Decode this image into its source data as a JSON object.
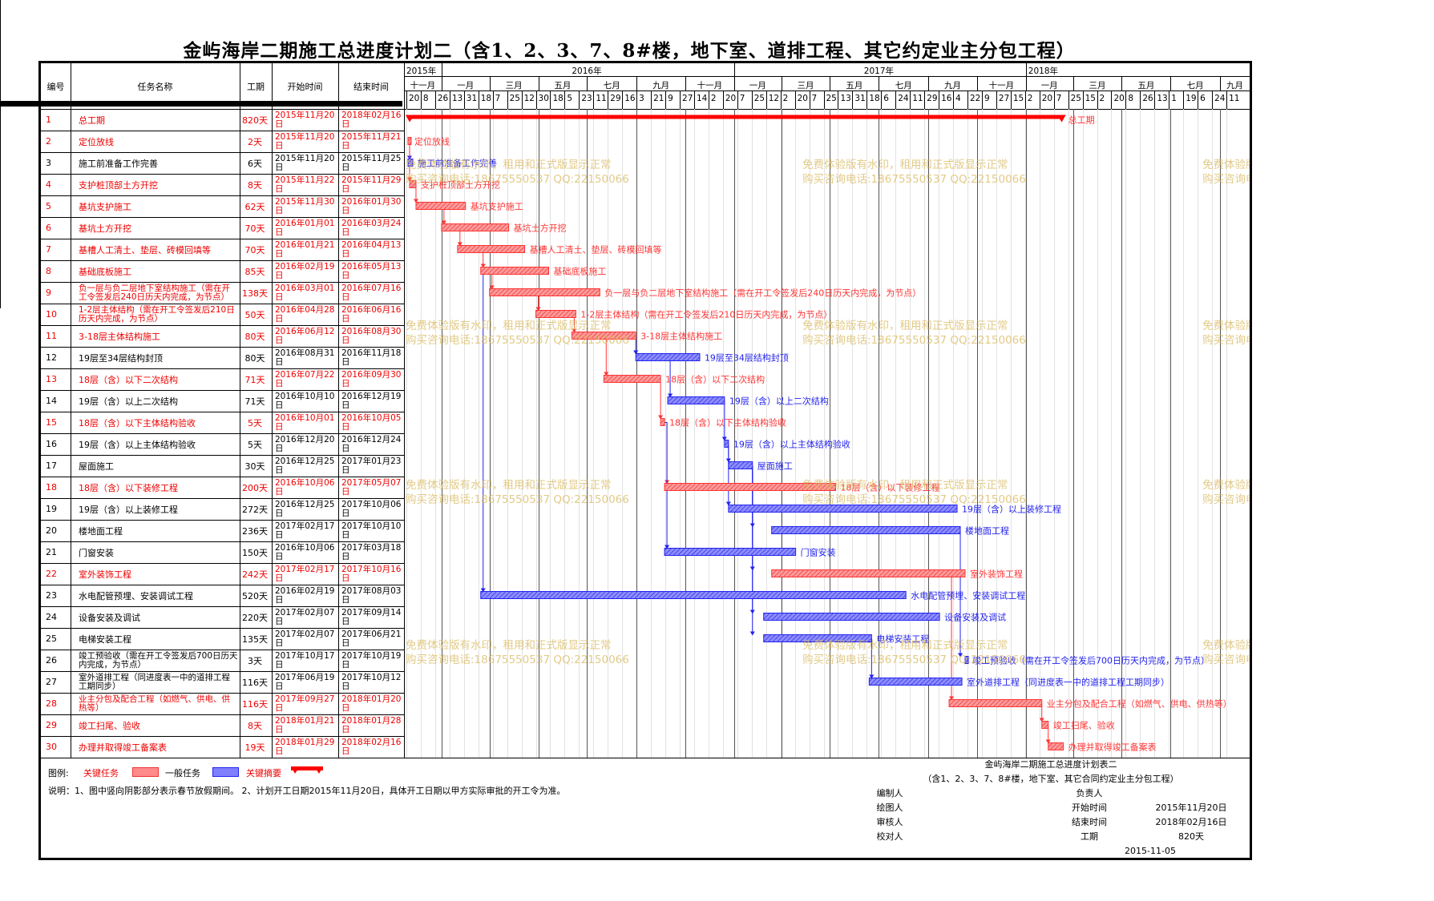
{
  "title": "金屿海岸二期施工总进度计划二（含1、2、3、7、8#楼，地下室、道排工程、其它约定业主分包工程）",
  "columns": {
    "id": "编号",
    "name": "任务名称",
    "dur": "工期",
    "start": "开始时间",
    "end": "结束时间"
  },
  "timeline": {
    "years": [
      "2015年",
      "2016年",
      "2017年",
      "2018年"
    ],
    "months": [
      "十一月",
      "一月",
      "三月",
      "五月",
      "七月",
      "九月",
      "十一月",
      "一月",
      "三月",
      "五月",
      "七月",
      "九月",
      "十一月",
      "一月",
      "三月",
      "五月",
      "七月",
      "九月"
    ],
    "days": [
      "20",
      "8",
      "26",
      "13",
      "31",
      "18",
      "7",
      "25",
      "12",
      "30",
      "18",
      "5",
      "23",
      "11",
      "29",
      "16",
      "3",
      "21",
      "9",
      "27",
      "14",
      "2",
      "20",
      "7",
      "25",
      "12",
      "2",
      "20",
      "7",
      "25",
      "13",
      "31",
      "18",
      "6",
      "24",
      "11",
      "29",
      "16",
      "4",
      "22",
      "9",
      "27",
      "15",
      "2",
      "20",
      "7",
      "25",
      "15",
      "2",
      "20",
      "8",
      "26",
      "13",
      "1",
      "19",
      "6",
      "24",
      "11"
    ]
  },
  "tasks": [
    {
      "id": "1",
      "name": "总工期",
      "dur": "820天",
      "start": "2015年11月20日",
      "end": "2018年02月16日",
      "critical": true
    },
    {
      "id": "2",
      "name": "定位放线",
      "dur": "2天",
      "start": "2015年11月20日",
      "end": "2015年11月21日",
      "critical": true
    },
    {
      "id": "3",
      "name": "施工前准备工作完善",
      "dur": "6天",
      "start": "2015年11月20日",
      "end": "2015年11月25日",
      "critical": false
    },
    {
      "id": "4",
      "name": "支护桩顶部土方开挖",
      "dur": "8天",
      "start": "2015年11月22日",
      "end": "2015年11月29日",
      "critical": true
    },
    {
      "id": "5",
      "name": "基坑支护施工",
      "dur": "62天",
      "start": "2015年11月30日",
      "end": "2016年01月30日",
      "critical": true
    },
    {
      "id": "6",
      "name": "基坑土方开挖",
      "dur": "70天",
      "start": "2016年01月01日",
      "end": "2016年03月24日",
      "critical": true
    },
    {
      "id": "7",
      "name": "基槽人工清土、垫层、砖模回填等",
      "dur": "70天",
      "start": "2016年01月21日",
      "end": "2016年04月13日",
      "critical": true
    },
    {
      "id": "8",
      "name": "基础底板施工",
      "dur": "85天",
      "start": "2016年02月19日",
      "end": "2016年05月13日",
      "critical": true
    },
    {
      "id": "9",
      "name": "负一层与负二层地下室结构施工（需在开工令签发后240日历天内完成，为节点）",
      "dur": "138天",
      "start": "2016年03月01日",
      "end": "2016年07月16日",
      "critical": true
    },
    {
      "id": "10",
      "name": "1-2层主体结构（需在开工令签发后210日历天内完成，为节点）",
      "dur": "50天",
      "start": "2016年04月28日",
      "end": "2016年06月16日",
      "critical": true
    },
    {
      "id": "11",
      "name": "3-18层主体结构施工",
      "dur": "80天",
      "start": "2016年06月12日",
      "end": "2016年08月30日",
      "critical": true
    },
    {
      "id": "12",
      "name": "19层至34层结构封顶",
      "dur": "80天",
      "start": "2016年08月31日",
      "end": "2016年11月18日",
      "critical": false
    },
    {
      "id": "13",
      "name": "18层（含）以下二次结构",
      "dur": "71天",
      "start": "2016年07月22日",
      "end": "2016年09月30日",
      "critical": true
    },
    {
      "id": "14",
      "name": "19层（含）以上二次结构",
      "dur": "71天",
      "start": "2016年10月10日",
      "end": "2016年12月19日",
      "critical": false
    },
    {
      "id": "15",
      "name": "18层（含）以下主体结构验收",
      "dur": "5天",
      "start": "2016年10月01日",
      "end": "2016年10月05日",
      "critical": true
    },
    {
      "id": "16",
      "name": "19层（含）以上主体结构验收",
      "dur": "5天",
      "start": "2016年12月20日",
      "end": "2016年12月24日",
      "critical": false
    },
    {
      "id": "17",
      "name": "屋面施工",
      "dur": "30天",
      "start": "2016年12月25日",
      "end": "2017年01月23日",
      "critical": false
    },
    {
      "id": "18",
      "name": "18层（含）以下装修工程",
      "dur": "200天",
      "start": "2016年10月06日",
      "end": "2017年05月07日",
      "critical": true
    },
    {
      "id": "19",
      "name": "19层（含）以上装修工程",
      "dur": "272天",
      "start": "2016年12月25日",
      "end": "2017年10月06日",
      "critical": false
    },
    {
      "id": "20",
      "name": "楼地面工程",
      "dur": "236天",
      "start": "2017年02月17日",
      "end": "2017年10月10日",
      "critical": false
    },
    {
      "id": "21",
      "name": "门窗安装",
      "dur": "150天",
      "start": "2016年10月06日",
      "end": "2017年03月18日",
      "critical": false
    },
    {
      "id": "22",
      "name": "室外装饰工程",
      "dur": "242天",
      "start": "2017年02月17日",
      "end": "2017年10月16日",
      "critical": true
    },
    {
      "id": "23",
      "name": "水电配管预埋、安装调试工程",
      "dur": "520天",
      "start": "2016年02月19日",
      "end": "2017年08月03日",
      "critical": false
    },
    {
      "id": "24",
      "name": "设备安装及调试",
      "dur": "220天",
      "start": "2017年02月07日",
      "end": "2017年09月14日",
      "critical": false
    },
    {
      "id": "25",
      "name": "电梯安装工程",
      "dur": "135天",
      "start": "2017年02月07日",
      "end": "2017年06月21日",
      "critical": false
    },
    {
      "id": "26",
      "name": "竣工预验收（需在开工令签发后700日历天内完成，为节点）",
      "dur": "3天",
      "start": "2017年10月17日",
      "end": "2017年10月19日",
      "critical": false
    },
    {
      "id": "27",
      "name": "室外道排工程（同进度表一中的道排工程工期同步）",
      "dur": "116天",
      "start": "2017年06月19日",
      "end": "2017年10月12日",
      "critical": false
    },
    {
      "id": "28",
      "name": "业主分包及配合工程（如燃气、供电、供热等）",
      "dur": "116天",
      "start": "2017年09月27日",
      "end": "2018年01月20日",
      "critical": true
    },
    {
      "id": "29",
      "name": "竣工扫尾、验收",
      "dur": "8天",
      "start": "2018年01月21日",
      "end": "2018年01月28日",
      "critical": true
    },
    {
      "id": "30",
      "name": "办理并取得竣工备案表",
      "dur": "19天",
      "start": "2018年01月29日",
      "end": "2018年02月16日",
      "critical": true
    }
  ],
  "bar_labels": {
    "1": "总工期",
    "2": "定位放线",
    "3": "施工前准备工作完善",
    "4": "支护桩顶部土方开挖",
    "5": "基坑支护施工",
    "6": "基坑土方开挖",
    "7": "基槽人工清土、垫层、砖模回填等",
    "8": "基础底板施工",
    "9": "负一层与负二层地下室结构施工（需在开工令签发后240日历天内完成，为节点）",
    "10": "1-2层主体结构（需在开工令签发后210日历天内完成，为节点）",
    "11": "3-18层主体结构施工",
    "12": "19层至34层结构封顶",
    "13": "18层（含）以下二次结构",
    "14": "19层（含）以上二次结构",
    "15": "18层（含）以下主体结构验收",
    "16": "19层（含）以上主体结构验收",
    "17": "屋面施工",
    "18": "18层（含）以下装修工程",
    "19": "19层（含）以上装修工程",
    "20": "楼地面工程",
    "21": "门窗安装",
    "22": "室外装饰工程",
    "23": "水电配管预埋、安装调试工程",
    "24": "设备安装及调试",
    "25": "电梯安装工程",
    "26": "竣工预验收（需在开工令签发后700日历天内完成，为节点）",
    "27": "室外道排工程（同进度表一中的道排工程工期同步）",
    "28": "业主分包及配合工程（如燃气、供电、供热等）",
    "29": "竣工扫尾、验收",
    "30": "办理并取得竣工备案表"
  },
  "watermark": {
    "line1": "免费体验版有水印，租用和正式版显示正常",
    "line2": "购买咨询电话:18675550537 QQ:22150066"
  },
  "legend": {
    "label": "图例:",
    "critical": "关键任务",
    "normal": "一般任务",
    "summary": "关键摘要"
  },
  "notes": "说明：1、图中竖向阴影部分表示春节放假期间。    2、计划开工日期2015年11月20日，具体开工日期以甲方实际审批的开工令为准。",
  "title_block": {
    "name": "金屿海岸二期施工总进度计划表二",
    "subtitle": "（含1、2、3、7、8#楼，地下室、其它合同约定业主分包工程）",
    "compiled_by": "编制人",
    "responsible": "负责人",
    "drawn_by": "绘图人",
    "start_label": "开始时间",
    "start_value": "2015年11月20日",
    "reviewed_by": "审核人",
    "end_label": "结束时间",
    "end_value": "2018年02月16日",
    "checked_by": "校对人",
    "duration_label": "工期",
    "duration_value": "820天",
    "date": "2015-11-05"
  },
  "colors": {
    "critical": "#ff3333",
    "critical_fill": "#ff8a8a",
    "normal": "#2222ee",
    "normal_fill": "#8080ff",
    "summary": "#ff0000",
    "watermark": "#d9b95e"
  }
}
